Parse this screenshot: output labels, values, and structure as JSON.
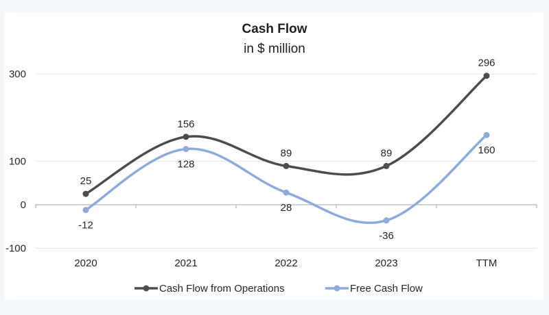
{
  "chart_data": {
    "type": "line",
    "title": "Cash Flow",
    "subtitle": "in $ million",
    "xlabel": "",
    "ylabel": "",
    "categories": [
      "2020",
      "2021",
      "2022",
      "2023",
      "TTM"
    ],
    "y_ticks": [
      300,
      100,
      0,
      -100
    ],
    "ylim": [
      -100,
      300
    ],
    "grid": true,
    "smooth": true,
    "legend_position": "bottom",
    "series": [
      {
        "name": "Cash Flow from Operations",
        "color": "#4d4d4d",
        "values": [
          25,
          156,
          89,
          89,
          296
        ],
        "label_position": "above"
      },
      {
        "name": "Free Cash Flow",
        "color": "#8faadc",
        "values": [
          -12,
          128,
          28,
          -36,
          160
        ],
        "label_position": "below"
      }
    ]
  }
}
